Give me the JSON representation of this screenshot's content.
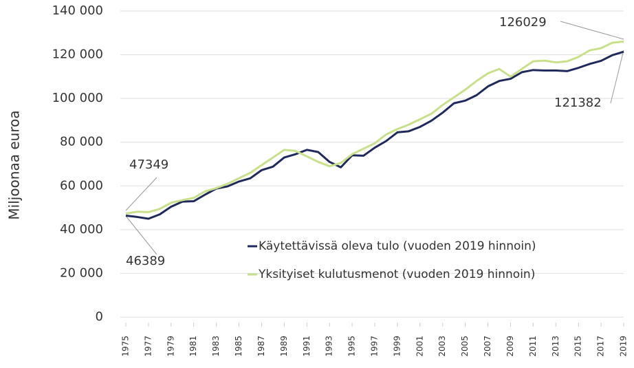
{
  "chart_data": {
    "type": "line",
    "y_label": "Miljoonaa euroa",
    "x": [
      1975,
      1976,
      1977,
      1978,
      1979,
      1980,
      1981,
      1982,
      1983,
      1984,
      1985,
      1986,
      1987,
      1988,
      1989,
      1990,
      1991,
      1992,
      1993,
      1994,
      1995,
      1996,
      1997,
      1998,
      1999,
      2000,
      2001,
      2002,
      2003,
      2004,
      2005,
      2006,
      2007,
      2008,
      2009,
      2010,
      2011,
      2012,
      2013,
      2014,
      2015,
      2016,
      2017,
      2018,
      2019
    ],
    "xlim": [
      1975,
      2019
    ],
    "xticks": [
      1975,
      1977,
      1979,
      1981,
      1983,
      1985,
      1987,
      1989,
      1991,
      1993,
      1995,
      1997,
      1999,
      2001,
      2003,
      2005,
      2007,
      2009,
      2011,
      2013,
      2015,
      2017,
      2019
    ],
    "ylim": [
      0,
      140000
    ],
    "yticks": [
      0,
      {
        "value": 20000,
        "label": "20 000"
      },
      {
        "value": 40000,
        "label": "40 000"
      },
      {
        "value": 60000,
        "label": "60 000"
      },
      {
        "value": 80000,
        "label": "80 000"
      },
      {
        "value": 100000,
        "label": "100 000"
      },
      {
        "value": 120000,
        "label": "120 000"
      },
      {
        "value": 140000,
        "label": "140 000"
      }
    ],
    "grid": true,
    "legend": "center",
    "series": [
      {
        "name": "Käytettävissä oleva tulo (vuoden 2019 hinnoin)",
        "color": "#1f2a5c",
        "values": [
          46389,
          45800,
          45000,
          47000,
          50500,
          52800,
          53000,
          56000,
          58800,
          59800,
          62000,
          63500,
          67200,
          68800,
          73000,
          74500,
          76500,
          75500,
          71000,
          68500,
          74000,
          73800,
          77500,
          80500,
          84500,
          85000,
          87000,
          89800,
          93500,
          97800,
          99000,
          101500,
          105500,
          108000,
          109000,
          112000,
          113000,
          112800,
          112800,
          112500,
          114000,
          115800,
          117200,
          119800,
          121382
        ]
      },
      {
        "name": "Yksityiset kulutusmenot (vuoden 2019 hinnoin)",
        "color": "#c9e08a",
        "values": [
          47349,
          48200,
          48000,
          49500,
          52300,
          53500,
          54500,
          57500,
          59000,
          61000,
          63500,
          66000,
          69500,
          73000,
          76500,
          76000,
          73500,
          71000,
          69000,
          70500,
          74500,
          77000,
          79500,
          83500,
          86000,
          88000,
          90500,
          93000,
          97000,
          100500,
          104000,
          108000,
          111500,
          113500,
          110000,
          113500,
          117000,
          117300,
          116500,
          117000,
          119000,
          122000,
          123000,
          125500,
          126029
        ]
      }
    ]
  }
}
